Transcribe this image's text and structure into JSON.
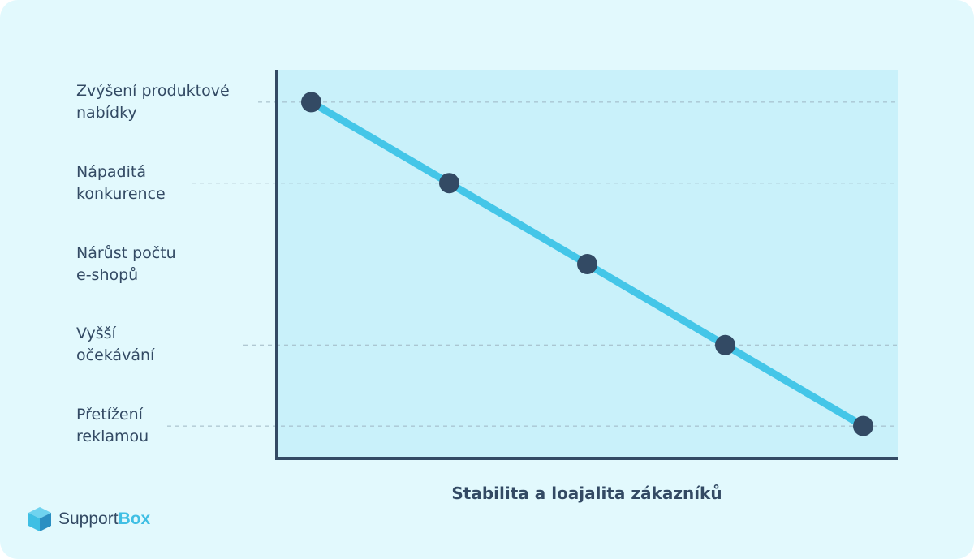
{
  "chart_data": {
    "type": "line",
    "xlabel": "Stabilita a loajalita zákazníků",
    "ylabel": "",
    "categories": [
      "Zvýšení produktové\nnabídky",
      "Nápaditá\nkonkurence",
      "Nárůst počtu\ne-shopů",
      "Vyšší\nočekávání",
      "Přetížení\nreklamou"
    ],
    "series": [
      {
        "values": [
          1,
          2,
          3,
          4,
          5
        ]
      }
    ],
    "xlim": [
      0.75,
      5.25
    ],
    "ylim": [
      0.6,
      5.4
    ],
    "grid": true,
    "colors": {
      "background": "#e2f9fd",
      "plot_area": "#c9f1fa",
      "axis": "#334a64",
      "line": "#44c6e8",
      "point": "#334a64",
      "grid": "#9fb7c3"
    }
  },
  "brand": {
    "name_part1": "Support",
    "name_part2": "Box",
    "icon": "cube-icon"
  }
}
